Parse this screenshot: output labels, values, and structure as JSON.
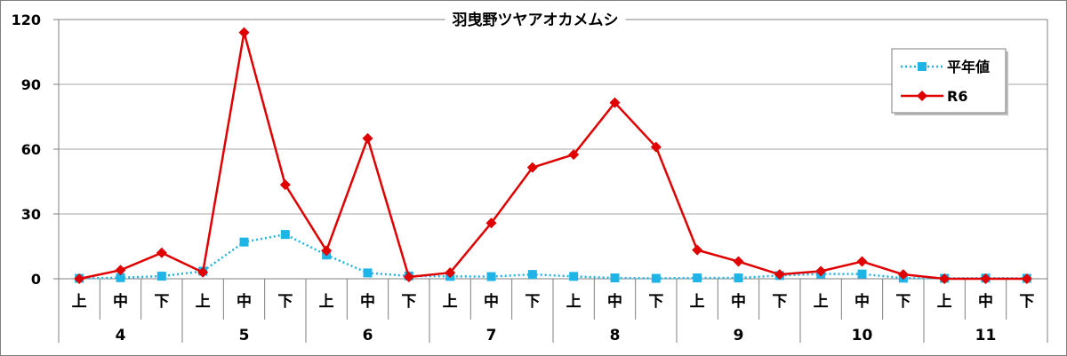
{
  "chart_data": {
    "type": "line",
    "title": "羽曳野ツヤアオカメムシ",
    "ylim": [
      0,
      120
    ],
    "yticks": [
      0,
      30,
      60,
      90,
      120
    ],
    "grid": true,
    "legend_position": "top-right",
    "categories": [
      "上",
      "中",
      "下",
      "上",
      "中",
      "下",
      "上",
      "中",
      "下",
      "上",
      "中",
      "下",
      "上",
      "中",
      "下",
      "上",
      "中",
      "下",
      "上",
      "中",
      "下",
      "上",
      "中",
      "下"
    ],
    "months": [
      "4",
      "5",
      "6",
      "7",
      "8",
      "9",
      "10",
      "11"
    ],
    "series": [
      {
        "name": "平年値",
        "color": "#1fb4e6",
        "style": "dotted",
        "marker": "square",
        "values": [
          0.2,
          0.5,
          1.2,
          3.5,
          17,
          20.5,
          11,
          2.7,
          1.3,
          1.1,
          1.0,
          2.0,
          1.1,
          0.4,
          0.2,
          0.4,
          0.4,
          1.5,
          2.2,
          2.2,
          0.3,
          0.2,
          0.3,
          0.2
        ]
      },
      {
        "name": "R6",
        "color": "#e00000",
        "style": "solid",
        "marker": "diamond",
        "values": [
          0,
          4,
          12,
          3,
          114,
          43.5,
          13,
          65,
          0.8,
          2.8,
          25.8,
          51.5,
          57.5,
          81.5,
          61,
          13.3,
          8,
          2,
          3.5,
          8,
          2,
          0,
          0,
          0
        ]
      }
    ]
  }
}
